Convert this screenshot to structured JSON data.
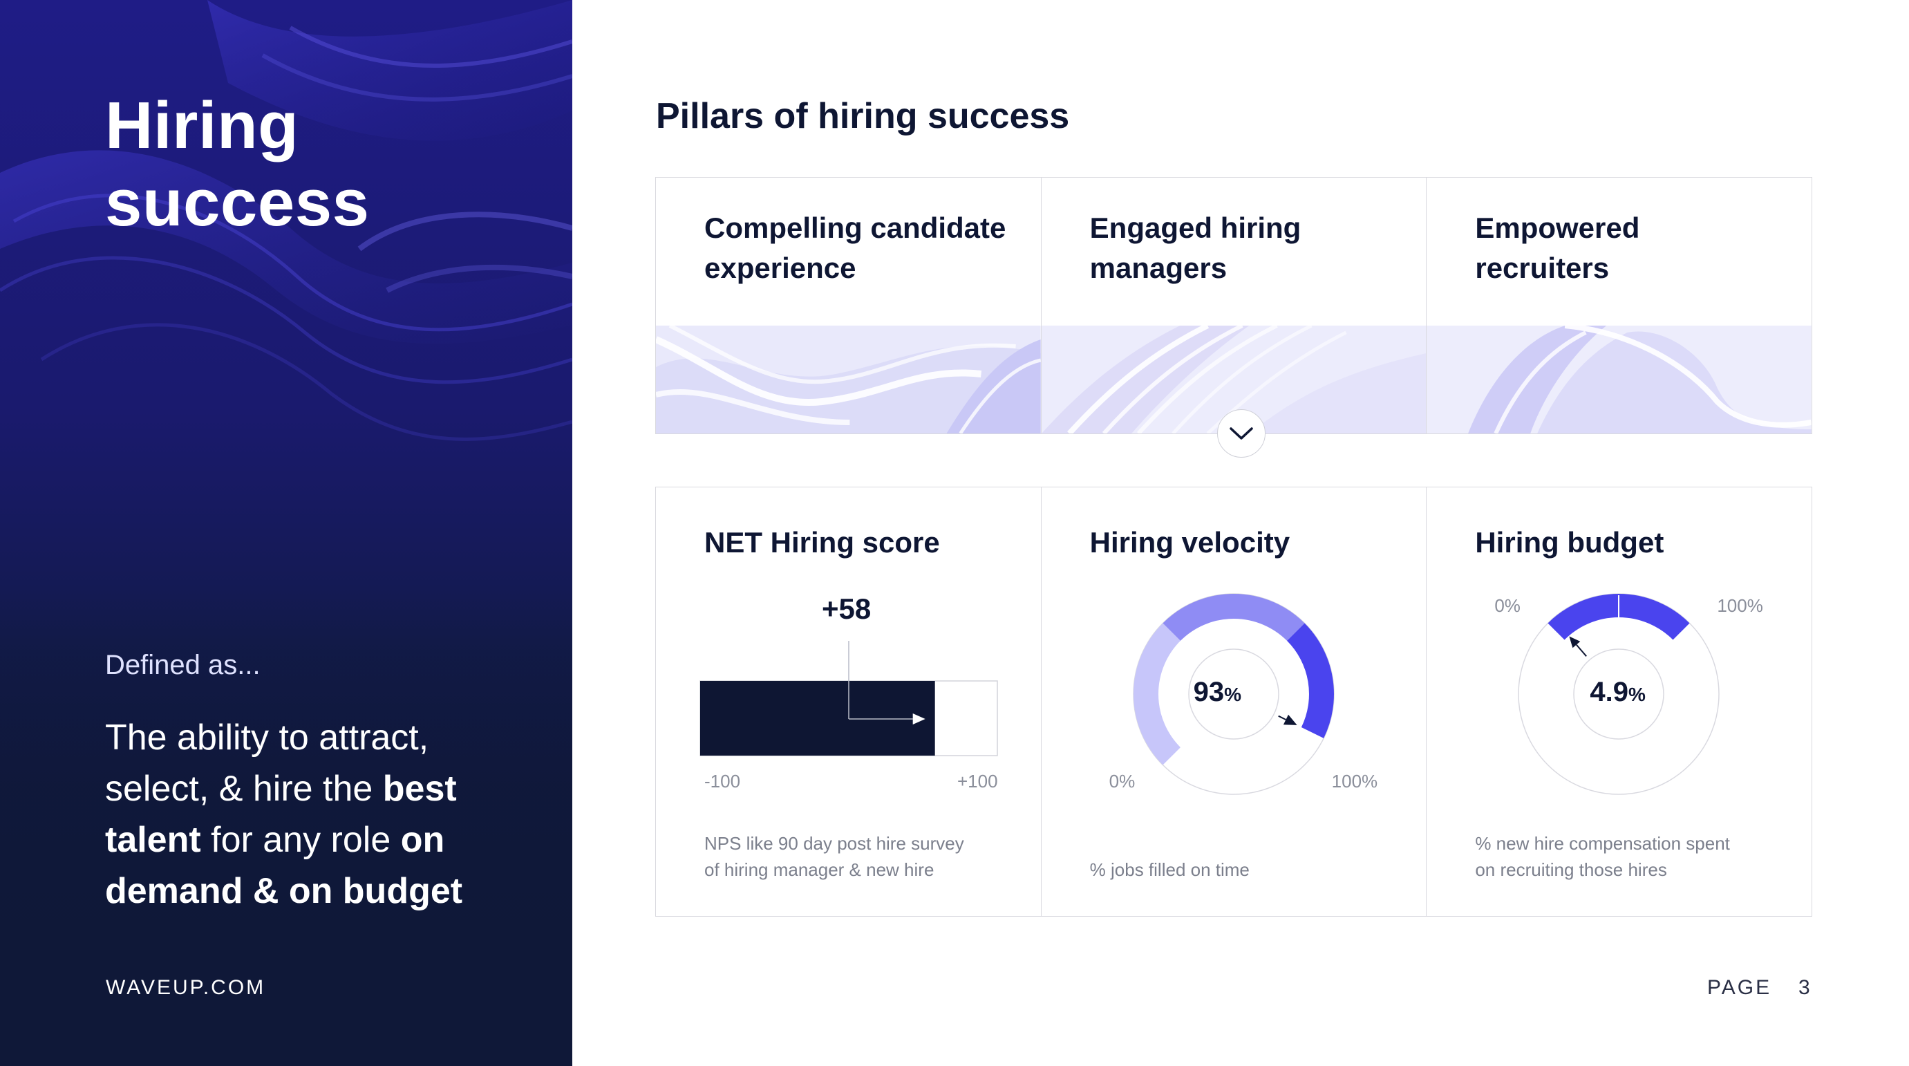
{
  "left": {
    "title_line1": "Hiring",
    "title_line2": "success",
    "defined_as": "Defined as...",
    "definition": {
      "p1": "The ability to attract, select, & hire the ",
      "b1": "best talent",
      "p2": " for any role ",
      "b2": "on demand & on budget"
    },
    "website": "WAVEUP.COM"
  },
  "main": {
    "title": "Pillars of hiring success",
    "pillars": [
      {
        "label": "Compelling candidate experience"
      },
      {
        "label": "Engaged hiring managers"
      },
      {
        "label": "Empowered recruiters"
      }
    ],
    "metrics": {
      "net_hiring": {
        "title": "NET Hiring score",
        "value": "+58",
        "min_label": "-100",
        "max_label": "+100",
        "min": -100,
        "max": 100,
        "score": 58,
        "note_line1": "NPS like 90 day post hire survey",
        "note_line2": "of hiring manager & new hire"
      },
      "velocity": {
        "title": "Hiring velocity",
        "value": "93",
        "unit": "%",
        "fraction": 0.93,
        "min_label": "0%",
        "max_label": "100%",
        "note": "% jobs filled on time"
      },
      "budget": {
        "title": "Hiring budget",
        "value": "4.9",
        "unit": "%",
        "fraction": 0.049,
        "min_label": "0%",
        "max_label": "100%",
        "note_line1": "% new hire compensation spent",
        "note_line2": "on recruiting those hires"
      }
    }
  },
  "footer": {
    "page_label": "PAGE",
    "page_number": "3"
  },
  "colors": {
    "navy": "#0e1633",
    "accent": "#4a44ee",
    "accent_mid": "#8f8cf4",
    "accent_light": "#c7c6fa",
    "panel_blue": "#1f1c86"
  }
}
